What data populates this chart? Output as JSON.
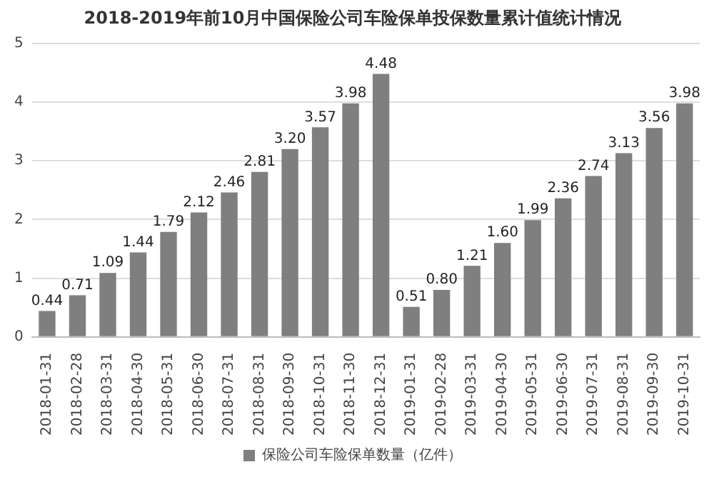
{
  "chart_data": {
    "type": "bar",
    "title": "2018-2019年前10月中国保险公司车险保单投保数量累计值统计情况",
    "categories": [
      "2018-01-31",
      "2018-02-28",
      "2018-03-31",
      "2018-04-30",
      "2018-05-31",
      "2018-06-30",
      "2018-07-31",
      "2018-08-31",
      "2018-09-30",
      "2018-10-31",
      "2018-11-30",
      "2018-12-31",
      "2019-01-31",
      "2019-02-28",
      "2019-03-31",
      "2019-04-30",
      "2019-05-31",
      "2019-06-30",
      "2019-07-31",
      "2019-08-31",
      "2019-09-30",
      "2019-10-31"
    ],
    "series": [
      {
        "name": "保险公司车险保单数量（亿件）",
        "color": "#7f7f7f",
        "values": [
          0.44,
          0.71,
          1.09,
          1.44,
          1.79,
          2.12,
          2.46,
          2.81,
          3.2,
          3.57,
          3.98,
          4.48,
          0.51,
          0.8,
          1.21,
          1.6,
          1.99,
          2.36,
          2.74,
          3.13,
          3.56,
          3.98
        ],
        "value_labels": [
          "0.44",
          "0.71",
          "1.09",
          "1.44",
          "1.79",
          "2.12",
          "2.46",
          "2.81",
          "3.20",
          "3.57",
          "3.98",
          "4.48",
          "0.51",
          "0.80",
          "1.21",
          "1.60",
          "1.99",
          "2.36",
          "2.74",
          "3.13",
          "3.56",
          "3.98"
        ]
      }
    ],
    "ylim": [
      0,
      5
    ],
    "yticks": [
      0,
      1,
      2,
      3,
      4,
      5
    ],
    "grid": "y",
    "legend": "bottom"
  }
}
